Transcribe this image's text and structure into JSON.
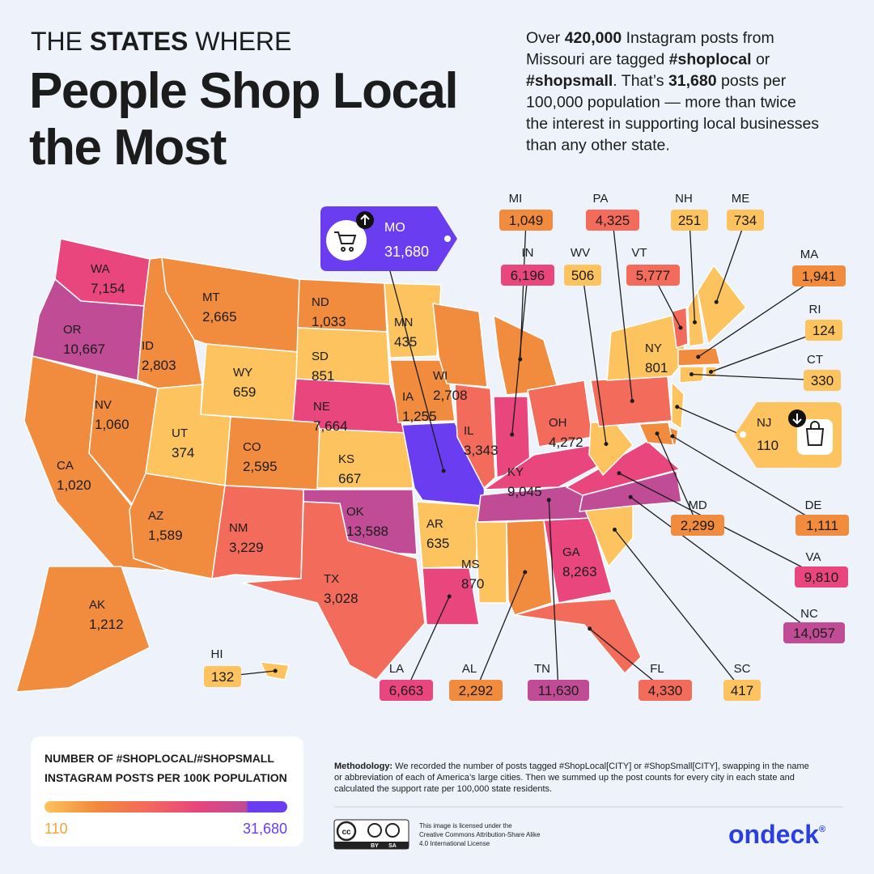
{
  "header": {
    "kicker": [
      {
        "text": "THE "
      },
      {
        "text": "STATES",
        "bold": true
      },
      {
        "text": " WHERE"
      }
    ],
    "title": [
      "People Shop Local",
      "the Most"
    ]
  },
  "intro": [
    [
      {
        "text": "Over "
      },
      {
        "text": "420,000",
        "bold": true
      },
      {
        "text": " Instagram posts from"
      }
    ],
    [
      {
        "text": "Missouri are tagged "
      },
      {
        "text": "#shoplocal",
        "bold": true
      },
      {
        "text": " or"
      }
    ],
    [
      {
        "text": "#shopsmall",
        "bold": true
      },
      {
        "text": ". That’s "
      },
      {
        "text": "31,680",
        "bold": true
      },
      {
        "text": " posts per"
      }
    ],
    [
      {
        "text": "100,000 population — more than twice"
      }
    ],
    [
      {
        "text": "the interest in supporting local businesses"
      }
    ],
    [
      {
        "text": "than any other state."
      }
    ]
  ],
  "map": {
    "states": [
      "WA",
      "OR",
      "CA",
      "NV",
      "ID",
      "MT",
      "WY",
      "UT",
      "AZ",
      "CO",
      "NM",
      "ND",
      "SD",
      "NE",
      "KS",
      "OK",
      "TX",
      "MN",
      "IA",
      "MO",
      "AR",
      "LA",
      "WI",
      "IL",
      "MI",
      "IN",
      "OH",
      "KY",
      "TN",
      "MS",
      "AL",
      "GA",
      "FL",
      "SC",
      "NC",
      "VA",
      "WV",
      "PA",
      "NY",
      "VT",
      "NH",
      "ME",
      "MA",
      "RI",
      "CT",
      "NJ",
      "DE",
      "MD",
      "AK",
      "HI"
    ],
    "values": [
      7154,
      10667,
      1020,
      1060,
      2803,
      2665,
      659,
      374,
      1589,
      2595,
      3229,
      1033,
      851,
      7664,
      667,
      13588,
      3028,
      435,
      1255,
      31680,
      635,
      6663,
      2708,
      3343,
      1049,
      6196,
      4272,
      9045,
      11630,
      870,
      2292,
      8263,
      4330,
      417,
      14057,
      9810,
      506,
      4325,
      801,
      5777,
      251,
      734,
      1941,
      124,
      330,
      110,
      1111,
      2299,
      1212,
      132
    ],
    "value_labels": [
      "7,154",
      "10,667",
      "1,020",
      "1,060",
      "2,803",
      "2,665",
      "659",
      "374",
      "1,589",
      "2,595",
      "3,229",
      "1,033",
      "851",
      "7,664",
      "667",
      "13,588",
      "3,028",
      "435",
      "1,255",
      "31,680",
      "635",
      "6,663",
      "2,708",
      "3,343",
      "1,049",
      "6,196",
      "4,272",
      "9,045",
      "11,630",
      "870",
      "2,292",
      "8,263",
      "4,330",
      "417",
      "14,057",
      "9,810",
      "506",
      "4,325",
      "801",
      "5,777",
      "251",
      "734",
      "1,941",
      "124",
      "330",
      "110",
      "1,111",
      "2,299",
      "1,212",
      "132"
    ],
    "colors": [
      "#e8467c",
      "#c04c95",
      "#f18b3d",
      "#f18b3d",
      "#f18b3d",
      "#f18b3d",
      "#fcc35e",
      "#fcc35e",
      "#f18b3d",
      "#f18b3d",
      "#f36b5b",
      "#f18b3d",
      "#fcc35e",
      "#e8467c",
      "#fcc35e",
      "#c04c95",
      "#f36b5b",
      "#fcc35e",
      "#f18b3d",
      "#6b3df0",
      "#fcc35e",
      "#e8467c",
      "#f18b3d",
      "#f36b5b",
      "#f18b3d",
      "#e8467c",
      "#f36b5b",
      "#e8467c",
      "#c04c95",
      "#fcc35e",
      "#f18b3d",
      "#e8467c",
      "#f36b5b",
      "#fcc35e",
      "#c04c95",
      "#e8467c",
      "#fcc35e",
      "#f36b5b",
      "#fcc35e",
      "#f36b5b",
      "#fcc35e",
      "#fcc35e",
      "#f18b3d",
      "#fcc35e",
      "#fcc35e",
      "#fcc35e",
      "#f18b3d",
      "#f18b3d",
      "#f18b3d",
      "#fcc35e"
    ]
  },
  "legend": {
    "title": [
      "NUMBER OF #SHOPLOCAL/#SHOPSMALL",
      "INSTAGRAM POSTS PER 100K POPULATION"
    ],
    "min": 110,
    "max": {
      "value": 31680,
      "label": "31,680"
    },
    "colors": [
      "#fcc35e",
      "#f18b3d",
      "#f36b5b",
      "#e8467c",
      "#c04c95",
      "#6b3df0"
    ]
  },
  "methodology": {
    "label": "Methodology:",
    "lines": [
      " We recorded the number of posts tagged #ShopLocal[CITY] or #ShopSmall[CITY], swapping in the name",
      "or abbreviation of each of America’s large cities. Then we summed up the post counts for every city in each state and",
      "calculated the support rate per 100,000 state residents."
    ]
  },
  "license": {
    "badge": [
      "BY",
      "SA"
    ],
    "lines": [
      "This image is licensed under the",
      "Creative Commons Attribution-Share Alike",
      "4.0 International License"
    ]
  },
  "logo": {
    "name": "ondeck",
    "mark": "®"
  }
}
